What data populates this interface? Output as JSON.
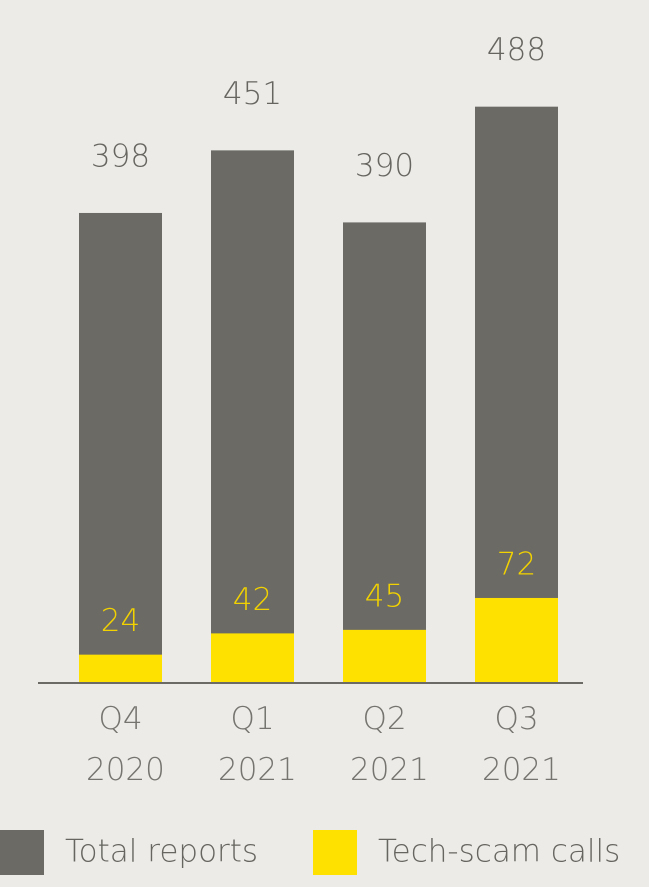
{
  "chart_data": {
    "type": "bar",
    "categories": [
      "Q4 2020",
      "Q1 2021",
      "Q2 2021",
      "Q3 2021"
    ],
    "series": [
      {
        "name": "Total reports",
        "color": "#6b6a65",
        "values": [
          398,
          451,
          390,
          488
        ]
      },
      {
        "name": "Tech-scam calls",
        "color": "#ffe100",
        "values": [
          24,
          42,
          45,
          72
        ]
      }
    ],
    "ylim": [
      0,
      500
    ]
  }
}
